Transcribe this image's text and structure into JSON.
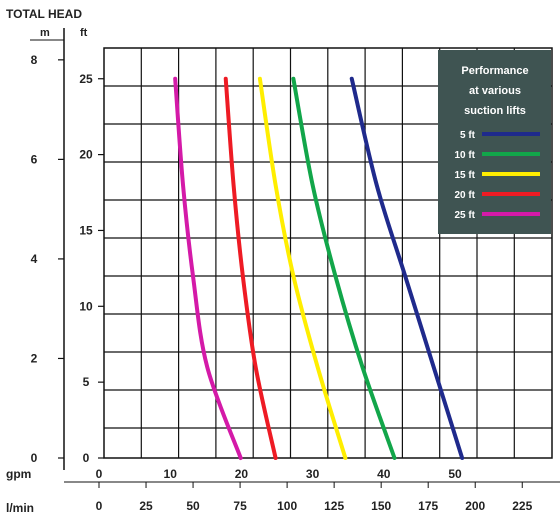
{
  "chart_data": {
    "type": "line",
    "title": "TOTAL HEAD",
    "left_units": {
      "m": "m",
      "ft": "ft"
    },
    "y_m_ticks": [
      "0",
      "2",
      "4",
      "6",
      "8"
    ],
    "y_ft_ticks": [
      "0",
      "5",
      "10",
      "15",
      "20",
      "25"
    ],
    "x_gpm_label": "gpm",
    "x_gpm_ticks": [
      "0",
      "10",
      "20",
      "30",
      "40",
      "50"
    ],
    "x_lmin_label": "l/min",
    "x_lmin_ticks": [
      "0",
      "25",
      "50",
      "75",
      "100",
      "125",
      "150",
      "175",
      "200",
      "225"
    ],
    "xlim_gpm": [
      0,
      60
    ],
    "ylim_ft": [
      0,
      26
    ],
    "grid": true,
    "legend": {
      "title_lines": [
        "Performance",
        "at various",
        "suction lifts"
      ],
      "placement": "top-right"
    },
    "series": [
      {
        "name": "5 ft",
        "color": "#1f2a8c",
        "points": [
          [
            35.5,
            25
          ],
          [
            39,
            18
          ],
          [
            43,
            12
          ],
          [
            47,
            6
          ],
          [
            51,
            0
          ]
        ]
      },
      {
        "name": "10 ft",
        "color": "#12a64a",
        "points": [
          [
            27.3,
            25
          ],
          [
            30,
            18
          ],
          [
            33.2,
            12
          ],
          [
            37,
            6
          ],
          [
            41.5,
            0
          ]
        ]
      },
      {
        "name": "15 ft",
        "color": "#ffee00",
        "points": [
          [
            22.6,
            25
          ],
          [
            24.8,
            18
          ],
          [
            27.3,
            12
          ],
          [
            30.7,
            6
          ],
          [
            34.6,
            0
          ]
        ]
      },
      {
        "name": "20 ft",
        "color": "#ee1b24",
        "points": [
          [
            17.8,
            25
          ],
          [
            18.9,
            18
          ],
          [
            20.2,
            12
          ],
          [
            22,
            6
          ],
          [
            24.8,
            0
          ]
        ]
      },
      {
        "name": "25 ft",
        "color": "#d41aa8",
        "points": [
          [
            10.7,
            25
          ],
          [
            11.8,
            18
          ],
          [
            13.2,
            12
          ],
          [
            15.2,
            6
          ],
          [
            19.9,
            0
          ]
        ]
      }
    ]
  }
}
